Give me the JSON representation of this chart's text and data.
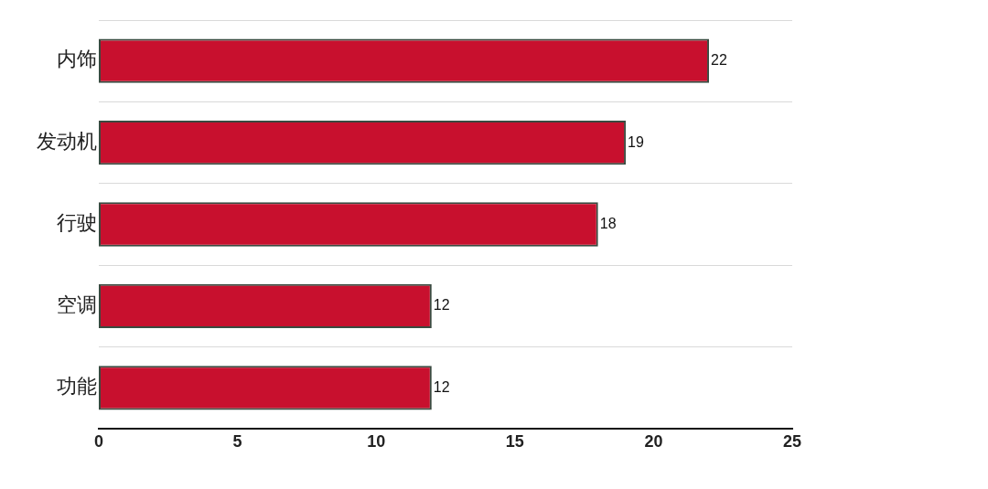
{
  "chart_data": {
    "type": "bar",
    "orientation": "horizontal",
    "categories": [
      "内饰",
      "发动机",
      "行驶",
      "空调",
      "功能"
    ],
    "values": [
      22,
      19,
      18,
      12,
      12
    ],
    "color": "#c8102e",
    "xlim": [
      0,
      25
    ],
    "xticks": [
      0,
      5,
      10,
      15,
      20,
      25
    ],
    "grid": "y",
    "legend": false,
    "data_labels": true
  }
}
